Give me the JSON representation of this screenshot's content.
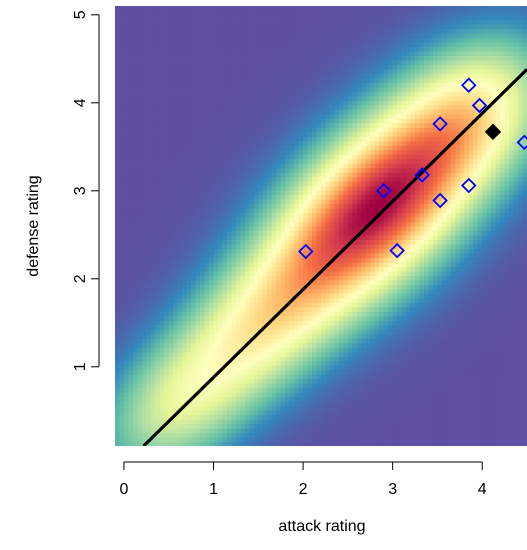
{
  "chart_data": {
    "type": "scatter",
    "title": "",
    "xlabel": "attack rating",
    "ylabel": "defense rating",
    "xlim": [
      -0.1,
      4.5
    ],
    "ylim": [
      0.1,
      5.1
    ],
    "x_ticks": [
      0,
      1,
      2,
      3,
      4
    ],
    "y_ticks": [
      1,
      2,
      3,
      4,
      5
    ],
    "background": "2D density heatmap (Spectral palette)",
    "density_palette": [
      "#5E4FA2",
      "#3288BD",
      "#66C2A5",
      "#ABDDA4",
      "#E6F598",
      "#FFFFBF",
      "#FEE08B",
      "#FDAE61",
      "#F46D43",
      "#D53E4F",
      "#9E0142"
    ],
    "series": [
      {
        "marker": "open-diamond",
        "color": "#0000FF",
        "points": [
          {
            "x": 2.03,
            "y": 2.31
          },
          {
            "x": 2.9,
            "y": 3.0
          },
          {
            "x": 3.05,
            "y": 2.32
          },
          {
            "x": 3.33,
            "y": 3.18
          },
          {
            "x": 3.53,
            "y": 3.76
          },
          {
            "x": 3.53,
            "y": 2.89
          },
          {
            "x": 3.85,
            "y": 4.2
          },
          {
            "x": 3.85,
            "y": 3.06
          },
          {
            "x": 3.97,
            "y": 3.97
          },
          {
            "x": 4.47,
            "y": 3.55
          }
        ]
      },
      {
        "marker": "filled-diamond",
        "color": "#000000",
        "points": [
          {
            "x": 4.12,
            "y": 3.67
          }
        ]
      }
    ],
    "regression_line": {
      "color": "#000000",
      "x": [
        0.22,
        4.5
      ],
      "y": [
        0.1,
        4.38
      ]
    }
  }
}
